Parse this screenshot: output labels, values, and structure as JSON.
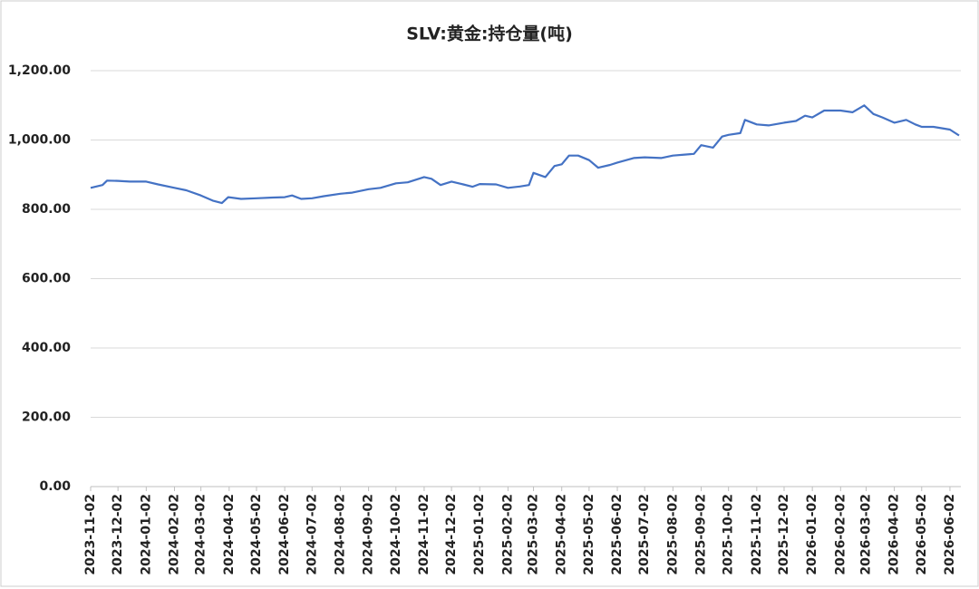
{
  "chart_data": {
    "type": "line",
    "title": "SLV:黄金:持仓量(吨)",
    "x": [
      "2023-11-02",
      "2023-11-15",
      "2023-11-20",
      "2023-12-02",
      "2023-12-15",
      "2024-01-02",
      "2024-01-15",
      "2024-02-02",
      "2024-02-15",
      "2024-03-02",
      "2024-03-15",
      "2024-03-25",
      "2024-04-01",
      "2024-04-15",
      "2024-05-02",
      "2024-05-20",
      "2024-06-02",
      "2024-06-10",
      "2024-06-20",
      "2024-07-02",
      "2024-07-15",
      "2024-08-02",
      "2024-08-15",
      "2024-09-02",
      "2024-09-15",
      "2024-10-02",
      "2024-10-15",
      "2024-11-02",
      "2024-11-10",
      "2024-11-20",
      "2024-12-02",
      "2024-12-15",
      "2024-12-25",
      "2025-01-02",
      "2025-01-20",
      "2025-02-02",
      "2025-02-15",
      "2025-02-25",
      "2025-03-02",
      "2025-03-15",
      "2025-03-25",
      "2025-04-02",
      "2025-04-10",
      "2025-04-20",
      "2025-05-02",
      "2025-05-12",
      "2025-05-25",
      "2025-06-02",
      "2025-06-20",
      "2025-07-02",
      "2025-07-20",
      "2025-08-02",
      "2025-08-15",
      "2025-08-25",
      "2025-09-02",
      "2025-09-15",
      "2025-09-25",
      "2025-10-02",
      "2025-10-15",
      "2025-10-20",
      "2025-11-02",
      "2025-11-15",
      "2025-12-02",
      "2025-12-15",
      "2025-12-25",
      "2026-01-02",
      "2026-01-15",
      "2026-02-02",
      "2026-02-15",
      "2026-02-28",
      "2026-03-10",
      "2026-03-20",
      "2026-04-02",
      "2026-04-15",
      "2026-04-25",
      "2026-05-02",
      "2026-05-15",
      "2026-06-02",
      "2026-06-12"
    ],
    "series": [
      {
        "name": "SLV:黄金:持仓量",
        "color": "#4472c4",
        "values": [
          862,
          870,
          883,
          882,
          880,
          880,
          872,
          862,
          855,
          840,
          825,
          818,
          835,
          830,
          832,
          834,
          835,
          840,
          830,
          832,
          838,
          845,
          848,
          858,
          862,
          875,
          878,
          893,
          888,
          870,
          880,
          872,
          865,
          873,
          872,
          862,
          866,
          870,
          905,
          893,
          925,
          930,
          955,
          955,
          942,
          920,
          928,
          935,
          948,
          950,
          948,
          955,
          958,
          960,
          985,
          978,
          1010,
          1015,
          1020,
          1058,
          1045,
          1042,
          1050,
          1055,
          1070,
          1065,
          1085,
          1085,
          1080,
          1100,
          1075,
          1065,
          1050,
          1058,
          1045,
          1038,
          1038,
          1030,
          1013
        ]
      }
    ],
    "xlim": [
      "2023-11-02",
      "2026-06-14"
    ],
    "xticks": [
      "2023-11-02",
      "2023-12-02",
      "2024-01-02",
      "2024-02-02",
      "2024-03-02",
      "2024-04-02",
      "2024-05-02",
      "2024-06-02",
      "2024-07-02",
      "2024-08-02",
      "2024-09-02",
      "2024-10-02",
      "2024-11-02",
      "2024-12-02",
      "2025-01-02",
      "2025-02-02",
      "2025-03-02",
      "2025-04-02",
      "2025-05-02",
      "2025-06-02",
      "2025-07-02",
      "2025-08-02",
      "2025-09-02",
      "2025-10-02",
      "2025-11-02",
      "2025-12-02",
      "2026-01-02",
      "2026-02-02",
      "2026-03-02",
      "2026-04-02",
      "2026-05-02",
      "2026-06-02"
    ],
    "ylim": [
      0,
      1200
    ],
    "yticks": [
      {
        "value": 0,
        "label": "0.00"
      },
      {
        "value": 200,
        "label": "200.00"
      },
      {
        "value": 400,
        "label": "400.00"
      },
      {
        "value": 600,
        "label": "600.00"
      },
      {
        "value": 800,
        "label": "800.00"
      },
      {
        "value": 1000,
        "label": "1,000.00"
      },
      {
        "value": 1200,
        "label": "1,200.00"
      }
    ],
    "grid": true
  }
}
